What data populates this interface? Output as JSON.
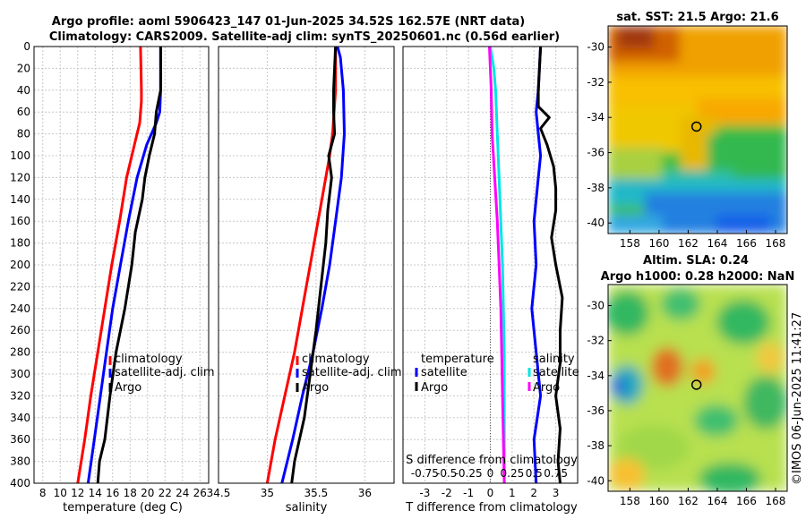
{
  "title_line1": "Argo profile: aoml 5906423_147 01-Jun-2025 34.52S 162.57E (NRT data)",
  "title_line2": "Climatology: CARS2009. Satellite-adj clim: synTS_20250601.nc (0.56d earlier)",
  "timestamp": "©IMOS 06-Jun-2025 11:41:27",
  "colors": {
    "climatology": "#ff0000",
    "satellite": "#0000ff",
    "argo": "#000000",
    "sal_satellite": "#00e5e5",
    "sal_argo": "#ff00ff"
  },
  "chart_data": [
    {
      "type": "line",
      "id": "temperature",
      "xlabel": "temperature (deg C)",
      "ylabel": "",
      "xlim": [
        7,
        27
      ],
      "ylim": [
        400,
        0
      ],
      "xticks": [
        "8",
        "10",
        "12",
        "14",
        "16",
        "18",
        "20",
        "22",
        "24",
        "26"
      ],
      "xtick_values": [
        8,
        10,
        12,
        14,
        16,
        18,
        20,
        22,
        24,
        26
      ],
      "yticks": [
        "0",
        "20",
        "40",
        "60",
        "80",
        "100",
        "120",
        "140",
        "160",
        "180",
        "200",
        "220",
        "240",
        "260",
        "280",
        "300",
        "320",
        "340",
        "360",
        "380",
        "400"
      ],
      "ytick_values": [
        0,
        20,
        40,
        60,
        80,
        100,
        120,
        140,
        160,
        180,
        200,
        220,
        240,
        260,
        280,
        300,
        320,
        340,
        360,
        380,
        400
      ],
      "grid": true,
      "legend": [
        "climatology",
        "satellite-adj. clim",
        "Argo"
      ],
      "series": [
        {
          "name": "climatology",
          "color": "#ff0000",
          "depth": [
            0,
            40,
            50,
            70,
            90,
            120,
            160,
            200,
            240,
            280,
            320,
            360,
            400
          ],
          "values": [
            19.2,
            19.3,
            19.3,
            19.1,
            18.5,
            17.6,
            16.8,
            15.9,
            15.1,
            14.3,
            13.5,
            12.8,
            12.0
          ]
        },
        {
          "name": "satellite-adj. clim",
          "color": "#0000ff",
          "depth": [
            0,
            40,
            60,
            70,
            90,
            120,
            160,
            200,
            240,
            280,
            320,
            360,
            400
          ],
          "values": [
            21.5,
            21.5,
            21.4,
            21.0,
            19.9,
            18.8,
            17.8,
            16.9,
            16.0,
            15.3,
            14.6,
            13.9,
            13.2
          ]
        },
        {
          "name": "Argo",
          "color": "#000000",
          "depth": [
            0,
            40,
            60,
            80,
            100,
            120,
            140,
            170,
            200,
            240,
            280,
            320,
            360,
            380,
            400
          ],
          "values": [
            21.5,
            21.5,
            21.0,
            20.8,
            20.2,
            19.7,
            19.4,
            18.6,
            18.2,
            17.4,
            16.4,
            15.7,
            15.1,
            14.5,
            14.3
          ]
        }
      ]
    },
    {
      "type": "line",
      "id": "salinity",
      "xlabel": "salinity",
      "ylabel": "",
      "xlim": [
        34.5,
        36.3
      ],
      "ylim": [
        400,
        0
      ],
      "xticks": [
        "34.5",
        "35",
        "35.5",
        "36"
      ],
      "xtick_values": [
        34.5,
        35,
        35.5,
        36
      ],
      "grid": true,
      "legend": [
        "climatology",
        "satellite-adj. clim",
        "Argo"
      ],
      "series": [
        {
          "name": "climatology",
          "color": "#ff0000",
          "depth": [
            0,
            40,
            80,
            100,
            120,
            160,
            200,
            240,
            280,
            320,
            360,
            400
          ],
          "values": [
            35.7,
            35.7,
            35.67,
            35.64,
            35.6,
            35.52,
            35.44,
            35.36,
            35.28,
            35.18,
            35.08,
            35.0
          ]
        },
        {
          "name": "satellite-adj. clim",
          "color": "#0000ff",
          "depth": [
            0,
            10,
            40,
            80,
            120,
            160,
            200,
            240,
            280,
            320,
            360,
            400
          ],
          "values": [
            35.72,
            35.75,
            35.78,
            35.79,
            35.76,
            35.7,
            35.64,
            35.56,
            35.47,
            35.36,
            35.26,
            35.15
          ]
        },
        {
          "name": "Argo",
          "color": "#000000",
          "depth": [
            0,
            20,
            40,
            60,
            80,
            100,
            120,
            150,
            180,
            220,
            260,
            300,
            340,
            380,
            400
          ],
          "values": [
            35.7,
            35.69,
            35.68,
            35.68,
            35.69,
            35.63,
            35.66,
            35.62,
            35.6,
            35.55,
            35.5,
            35.44,
            35.38,
            35.28,
            35.25
          ]
        }
      ]
    },
    {
      "type": "line",
      "id": "difference",
      "xlabel": "T difference from climatology",
      "top_label": "S difference from climatology",
      "xlim": [
        -4,
        4
      ],
      "ylim": [
        400,
        0
      ],
      "xticks": [
        "-3",
        "-2",
        "-1",
        "0",
        "1",
        "2",
        "3"
      ],
      "xtick_values": [
        -3,
        -2,
        -1,
        0,
        1,
        2,
        3
      ],
      "sticks": [
        "-0.75",
        "-0.5",
        "-0.25",
        "0",
        "0.25",
        "0.5",
        "0.75"
      ],
      "stick_values": [
        -0.75,
        -0.5,
        -0.25,
        0,
        0.25,
        0.5,
        0.75
      ],
      "s_xlim": [
        -1,
        1
      ],
      "grid": true,
      "legend_temperature_title": "temperature",
      "legend_temperature": [
        "satellite",
        "Argo"
      ],
      "legend_salinity_title": "salinity",
      "legend_salinity": [
        "satellite",
        "Argo"
      ],
      "series": [
        {
          "name": "temperature satellite",
          "color": "#0000ff",
          "scale": "T",
          "depth": [
            0,
            40,
            60,
            80,
            100,
            120,
            160,
            200,
            240,
            280,
            320,
            360,
            400
          ],
          "values": [
            2.3,
            2.2,
            2.1,
            2.2,
            2.3,
            2.2,
            2.0,
            2.1,
            1.9,
            2.1,
            2.3,
            2.0,
            2.1
          ]
        },
        {
          "name": "temperature Argo",
          "color": "#000000",
          "scale": "T",
          "depth": [
            0,
            40,
            55,
            65,
            75,
            90,
            110,
            130,
            150,
            175,
            200,
            230,
            260,
            290,
            320,
            350,
            380,
            400
          ],
          "values": [
            2.3,
            2.2,
            2.2,
            2.7,
            2.3,
            2.6,
            2.9,
            3.0,
            3.0,
            2.8,
            3.0,
            3.3,
            3.2,
            3.2,
            3.0,
            3.2,
            3.1,
            3.2
          ]
        },
        {
          "name": "salinity satellite",
          "color": "#00e5e5",
          "scale": "S",
          "depth": [
            0,
            20,
            40,
            80,
            120,
            160,
            200,
            240,
            280,
            320,
            360,
            400
          ],
          "values": [
            0.0,
            0.04,
            0.06,
            0.08,
            0.1,
            0.12,
            0.14,
            0.15,
            0.16,
            0.16,
            0.16,
            0.16
          ]
        },
        {
          "name": "salinity Argo",
          "color": "#ff00ff",
          "scale": "S",
          "depth": [
            0,
            20,
            40,
            80,
            120,
            160,
            200,
            240,
            280,
            320,
            360,
            400
          ],
          "values": [
            -0.01,
            0.0,
            0.01,
            0.02,
            0.05,
            0.08,
            0.1,
            0.12,
            0.13,
            0.14,
            0.15,
            0.16
          ]
        }
      ]
    },
    {
      "type": "heatmap",
      "id": "sst_map",
      "title": "sat. SST: 21.5 Argo: 21.6",
      "xlim": [
        156.5,
        168.8
      ],
      "ylim": [
        -40.6,
        -28.8
      ],
      "xticks": [
        "158",
        "160",
        "162",
        "164",
        "166",
        "168"
      ],
      "xtick_values": [
        158,
        160,
        162,
        164,
        166,
        168
      ],
      "yticks": [
        "-30",
        "-32",
        "-34",
        "-36",
        "-38",
        "-40"
      ],
      "ytick_values": [
        -30,
        -32,
        -34,
        -36,
        -38,
        -40
      ],
      "marker_lon": 162.57,
      "marker_lat": -34.52
    },
    {
      "type": "heatmap",
      "id": "sla_map",
      "title_line1": "Altim. SLA: 0.24",
      "title_line2": "Argo h1000: 0.28 h2000: NaN",
      "xlim": [
        156.5,
        168.8
      ],
      "ylim": [
        -40.6,
        -28.8
      ],
      "xticks": [
        "158",
        "160",
        "162",
        "164",
        "166",
        "168"
      ],
      "xtick_values": [
        158,
        160,
        162,
        164,
        166,
        168
      ],
      "yticks": [
        "-30",
        "-32",
        "-34",
        "-36",
        "-38",
        "-40"
      ],
      "ytick_values": [
        -30,
        -32,
        -34,
        -36,
        -38,
        -40
      ],
      "marker_lon": 162.57,
      "marker_lat": -34.52
    }
  ]
}
